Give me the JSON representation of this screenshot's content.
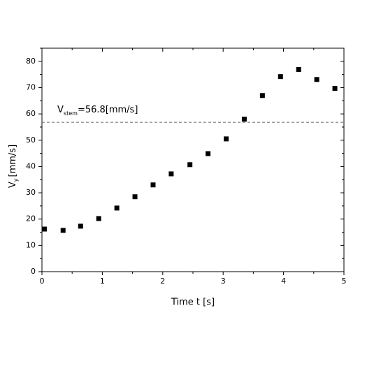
{
  "chart_data": {
    "type": "scatter",
    "x_label": "Time t [s]",
    "y_label": {
      "main": "V",
      "sub": "y",
      "unit": "[mm/s]"
    },
    "x": [
      0.04,
      0.35,
      0.64,
      0.94,
      1.24,
      1.54,
      1.84,
      2.14,
      2.45,
      2.75,
      3.05,
      3.35,
      3.65,
      3.95,
      4.25,
      4.55,
      4.85
    ],
    "series": [
      {
        "color": "#000000",
        "values": [
          16.2,
          15.7,
          17.3,
          20.2,
          24.2,
          28.5,
          33.0,
          37.2,
          40.7,
          44.9,
          50.5,
          58.0,
          67.0,
          74.2,
          76.9,
          73.1,
          69.7
        ]
      }
    ],
    "reference_line": {
      "value": 56.8,
      "color": "#666666",
      "label": {
        "main": "V",
        "sub": "stem",
        "rest": "=56.8[mm/s]"
      }
    },
    "xlim": [
      0,
      5
    ],
    "xticks": [
      0,
      1,
      2,
      3,
      4,
      5
    ],
    "x_minor_ticks": [
      0.5,
      1.5,
      2.5,
      3.5,
      4.5
    ],
    "ylim": [
      0,
      85
    ],
    "yticks": [
      0,
      10,
      20,
      30,
      40,
      50,
      60,
      70,
      80
    ],
    "y_minor_ticks": [
      5,
      15,
      25,
      35,
      45,
      55,
      65,
      75,
      85
    ],
    "grid": false
  }
}
